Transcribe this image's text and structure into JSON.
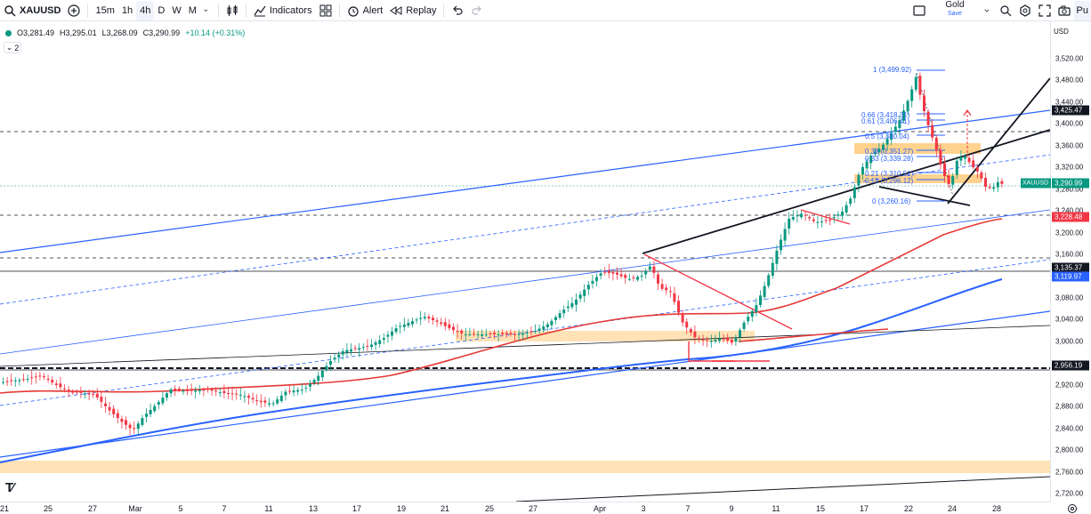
{
  "toolbar": {
    "symbol": "XAUUSD",
    "timeframes": [
      "15m",
      "1h",
      "4h",
      "D",
      "W",
      "M"
    ],
    "indicators_label": "Indicators",
    "alert_label": "Alert",
    "replay_label": "Replay",
    "layout_name": "Gold",
    "save_label": "Save",
    "publish_label": "Pu"
  },
  "legend": {
    "open": "O3,281.49",
    "high": "H3,295.01",
    "low": "L3,268.09",
    "close": "C3,290.99",
    "change": "+10.14 (+0.31%)",
    "collapse_count": "2"
  },
  "price_axis": {
    "currency": "USD",
    "labels": [
      "3,520.00",
      "3,480.00",
      "3,440.00",
      "3,400.00",
      "3,360.00",
      "3,320.00",
      "3,280.00",
      "3,240.00",
      "3,200.00",
      "3,160.00",
      "3,080.00",
      "3,040.00",
      "3,000.00",
      "2,920.00",
      "2,880.00",
      "2,840.00",
      "2,800.00",
      "2,760.00",
      "2,720.00"
    ],
    "tags": [
      {
        "text": "3,425.47",
        "color": "#131722"
      },
      {
        "text": "3,290.99",
        "color": "#089981"
      },
      {
        "text": "3,228.48",
        "color": "#f23645"
      },
      {
        "text": "3,135.37",
        "color": "#131722"
      },
      {
        "text": "3,119.97",
        "color": "#2962ff"
      },
      {
        "text": "2,956.19",
        "color": "#131722"
      }
    ],
    "symbol_tag": "XAUUSD"
  },
  "time_axis": [
    "21",
    "25",
    "27",
    "Mar",
    "5",
    "7",
    "11",
    "13",
    "17",
    "19",
    "21",
    "25",
    "27",
    "Apr",
    "3",
    "7",
    "9",
    "11",
    "15",
    "17",
    "22",
    "24",
    "28"
  ],
  "fib_labels": [
    "1 (3,499.92)",
    "0.66 (3,418.31)",
    "0.61 (3,406.41)",
    "0.5 (3,380.04)",
    "0.38 (3,351.27)",
    "0.33 (3,339.28)",
    "0.21 (3,310.51)",
    "0.15 (3,296.12)",
    "0 (3,260.16)"
  ],
  "colors": {
    "up": "#089981",
    "down": "#f23645",
    "ma_red": "#e53935",
    "ma_blue": "#2962ff",
    "fib": "#2962ff",
    "zone": "#ffd9a6"
  }
}
